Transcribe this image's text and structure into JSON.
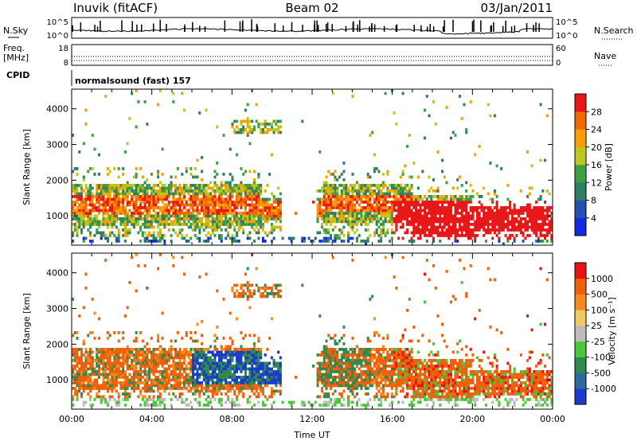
{
  "header": {
    "station": "Inuvik (fitACF)",
    "beam": "Beam 02",
    "date": "03/Jan/2011"
  },
  "top_panels": {
    "nsky_label": "N.Sky",
    "nsearch_label": "N.Search",
    "nsky_ticks": [
      "10^5",
      "10^0"
    ],
    "nsearch_ticks": [
      "10^5",
      "10^0"
    ],
    "freq_label": "Freq.",
    "freq_unit": "[MHz]",
    "freq_ticks": [
      "18",
      "8"
    ],
    "nave_label": "Nave",
    "nave_ticks": [
      "60",
      "0"
    ],
    "cpid_label": "CPID",
    "cpid_value": "normalsound (fast) 157"
  },
  "chart_data": [
    {
      "type": "heatmap",
      "name": "power",
      "ylabel": "Slant Range [km]",
      "xlabel": "",
      "ylim": [
        180,
        4550
      ],
      "xlim": [
        0,
        24
      ],
      "yticks": [
        "1000",
        "2000",
        "3000",
        "4000"
      ],
      "colorbar": {
        "label": "Power [dB]",
        "ticks": [
          "4",
          "8",
          "12",
          "16",
          "20",
          "24",
          "28"
        ],
        "colors": [
          "#1428e6",
          "#2450b4",
          "#2f7f64",
          "#3ca042",
          "#bcc820",
          "#f5a000",
          "#f06a00",
          "#e81818"
        ],
        "range": [
          0,
          32
        ]
      }
    },
    {
      "type": "heatmap",
      "name": "velocity",
      "ylabel": "Slant Range [km]",
      "xlabel": "Time UT",
      "ylim": [
        180,
        4550
      ],
      "xlim": [
        0,
        24
      ],
      "yticks": [
        "1000",
        "2000",
        "3000",
        "4000"
      ],
      "xticks": [
        "00:00",
        "04:00",
        "08:00",
        "12:00",
        "16:00",
        "20:00",
        "00:00"
      ],
      "colorbar": {
        "label": "Velocity [m s⁻¹]",
        "ticks": [
          "1000",
          "500",
          "100",
          "25",
          "-25",
          "-100",
          "-500",
          "-1000"
        ],
        "colors": [
          "#1a3cc8",
          "#2a6aa0",
          "#2e8a4e",
          "#48c83a",
          "#bcbcbc",
          "#f0c864",
          "#f58a1e",
          "#f0600a",
          "#e81414"
        ]
      }
    }
  ]
}
